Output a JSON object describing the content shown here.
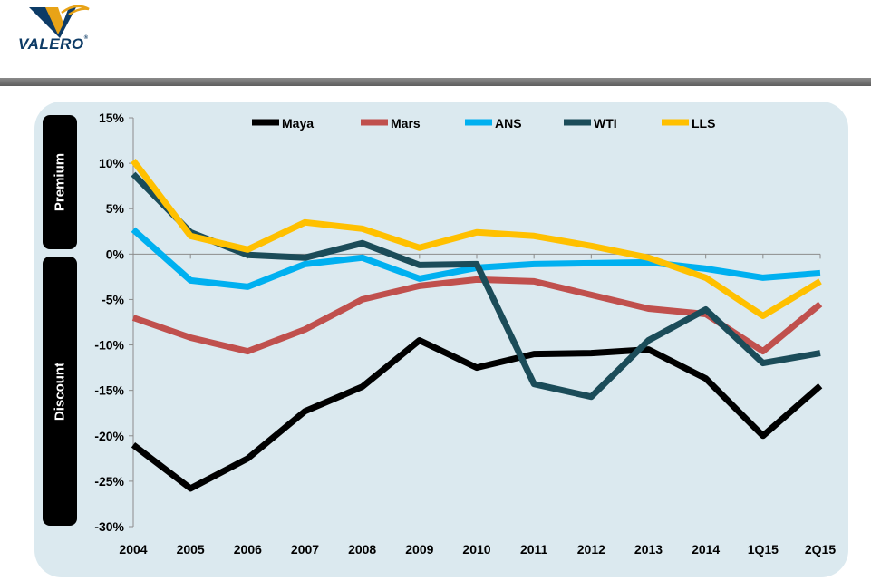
{
  "logo": {
    "brand": "VALERO",
    "registered_mark": "®"
  },
  "side_labels": {
    "premium": "Premium",
    "discount": "Discount"
  },
  "colors": {
    "panel": "#dbe9ef",
    "bar": "#6e6e6e"
  },
  "chart_data": {
    "type": "line",
    "title": "",
    "xlabel": "",
    "ylabel": "",
    "categories": [
      "2004",
      "2005",
      "2006",
      "2007",
      "2008",
      "2009",
      "2010",
      "2011",
      "2012",
      "2013",
      "2014",
      "1Q15",
      "2Q15"
    ],
    "ylim": [
      -30,
      15
    ],
    "yticks": [
      15,
      10,
      5,
      0,
      -5,
      -10,
      -15,
      -20,
      -25,
      -30
    ],
    "ytick_labels": [
      "15%",
      "10%",
      "5%",
      "0%",
      "-5%",
      "-10%",
      "-15%",
      "-20%",
      "-25%",
      "-30%"
    ],
    "legend_position": "top",
    "series": [
      {
        "name": "Maya",
        "color": "#000000",
        "values": [
          -21,
          -25.8,
          -22.5,
          -17.3,
          -14.6,
          -9.5,
          -12.5,
          -11,
          -10.9,
          -10.5,
          -13.7,
          -20,
          -14.5
        ]
      },
      {
        "name": "Mars",
        "color": "#c0504d",
        "values": [
          -7,
          -9.2,
          -10.7,
          -8.3,
          -5,
          -3.5,
          -2.8,
          -3,
          -4.5,
          -6,
          -6.6,
          -10.7,
          -5.5
        ]
      },
      {
        "name": "ANS",
        "color": "#00b0f0",
        "values": [
          2.7,
          -2.9,
          -3.6,
          -1.1,
          -0.4,
          -2.7,
          -1.5,
          -1.1,
          -1.0,
          -0.9,
          -1.6,
          -2.6,
          -2.1
        ]
      },
      {
        "name": "WTI",
        "color": "#1b4c59",
        "values": [
          8.8,
          2.4,
          -0.1,
          -0.4,
          1.2,
          -1.2,
          -1.1,
          -14.3,
          -15.7,
          -9.5,
          -6.1,
          -12,
          -10.9
        ]
      },
      {
        "name": "LLS",
        "color": "#ffc000",
        "values": [
          10.3,
          2,
          0.5,
          3.5,
          2.8,
          0.7,
          2.4,
          2,
          0.9,
          -0.4,
          -2.6,
          -6.8,
          -3
        ]
      }
    ]
  }
}
